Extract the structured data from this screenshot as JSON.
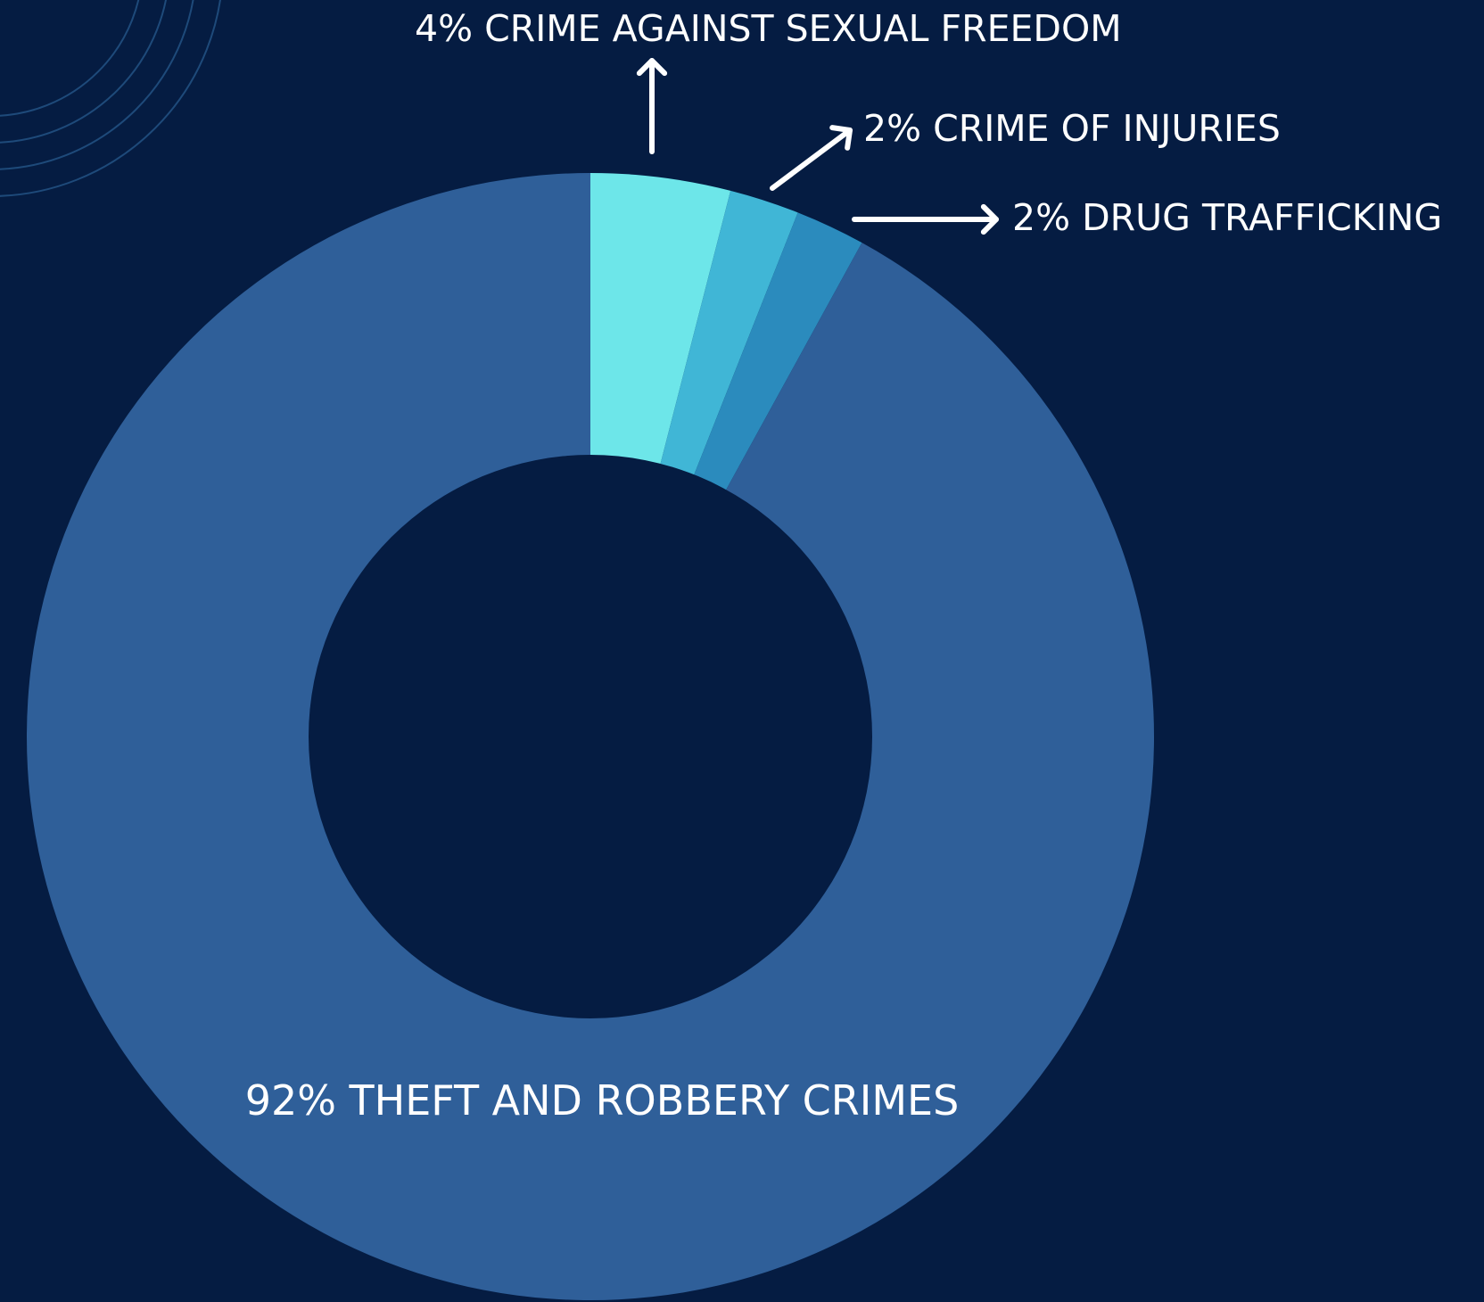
{
  "chart_data": {
    "type": "pie",
    "style": "donut",
    "start": "top, clockwise",
    "slices": [
      {
        "label": "CRIME AGAINST SEXUAL FREEDOM",
        "value": 4,
        "display": "4% CRIME AGAINST SEXUAL FREEDOM",
        "color": "#6de6e9"
      },
      {
        "label": "CRIME OF INJURIES",
        "value": 2,
        "display": "2% CRIME OF INJURIES",
        "color": "#40b6d6"
      },
      {
        "label": "DRUG TRAFFICKING",
        "value": 2,
        "display": "2% DRUG TRAFFICKING",
        "color": "#2b8bbd"
      },
      {
        "label": "THEFT AND ROBBERY CRIMES",
        "value": 92,
        "display": "92% THEFT AND ROBBERY CRIMES",
        "color": "#2f5f99"
      }
    ]
  },
  "colors": {
    "background": "#051c42",
    "label_text": "#ffffff",
    "decoration": "#1e4a7a"
  }
}
